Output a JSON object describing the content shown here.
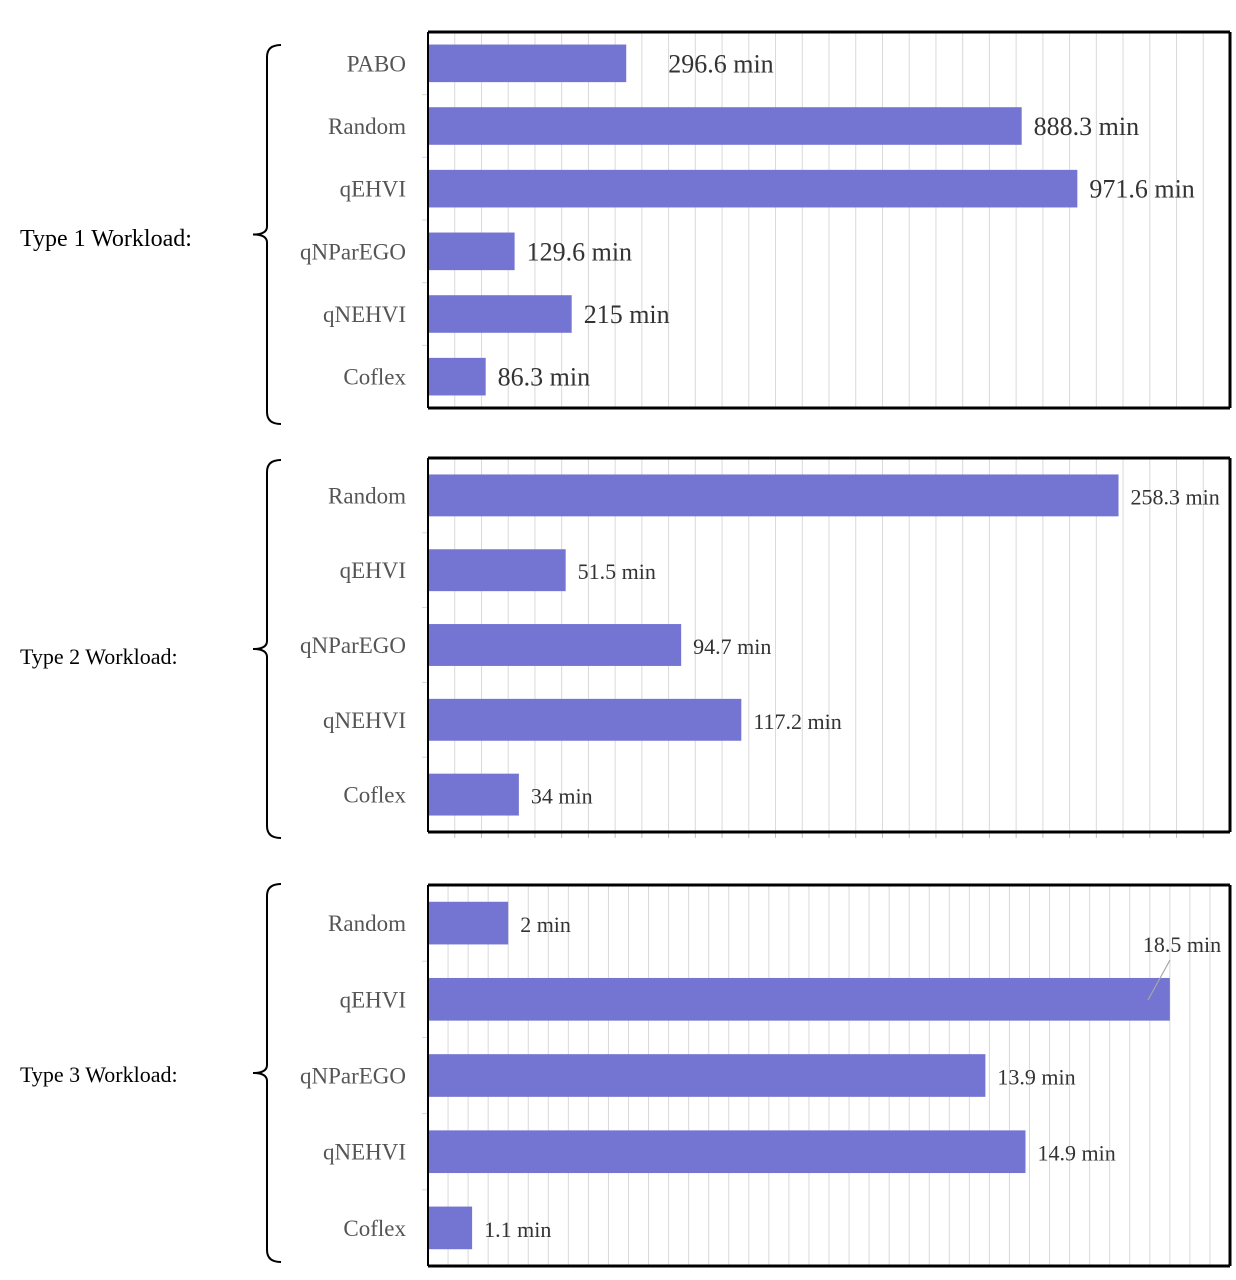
{
  "chart_data": [
    {
      "type": "bar",
      "orientation": "horizontal",
      "group_label": "Type 1 Workload:",
      "categories": [
        "PABO",
        "Random",
        "qEHVI",
        "qNParEGO",
        "qNEHVI",
        "Coflex"
      ],
      "values": [
        296.6,
        888.3,
        971.6,
        129.6,
        215,
        86.3
      ],
      "data_labels": [
        "296.6 min",
        "888.3 min",
        "971.6 min",
        "129.6 min",
        "215 min",
        "86.3 min"
      ],
      "xlim": [
        0,
        1200
      ],
      "grid": "vertical",
      "color": "#7475d2"
    },
    {
      "type": "bar",
      "orientation": "horizontal",
      "group_label": "Type 2 Workload:",
      "categories": [
        "Random",
        "qEHVI",
        "qNParEGO",
        "qNEHVI",
        "Coflex"
      ],
      "values": [
        258.3,
        51.5,
        94.7,
        117.2,
        34
      ],
      "data_labels": [
        "258.3 min",
        "51.5 min",
        "94.7 min",
        "117.2 min",
        "34 min"
      ],
      "xlim": [
        0,
        300
      ],
      "grid": "vertical",
      "color": "#7475d2"
    },
    {
      "type": "bar",
      "orientation": "horizontal",
      "group_label": "Type 3 Workload:",
      "categories": [
        "Random",
        "qEHVI",
        "qNParEGO",
        "qNEHVI",
        "Coflex"
      ],
      "values": [
        2,
        18.5,
        13.9,
        14.9,
        1.1
      ],
      "data_labels": [
        "2 min",
        "18.5 min",
        "13.9 min",
        "14.9 min",
        "1.1 min"
      ],
      "xlim": [
        0,
        20
      ],
      "grid": "vertical",
      "color": "#7475d2"
    }
  ]
}
